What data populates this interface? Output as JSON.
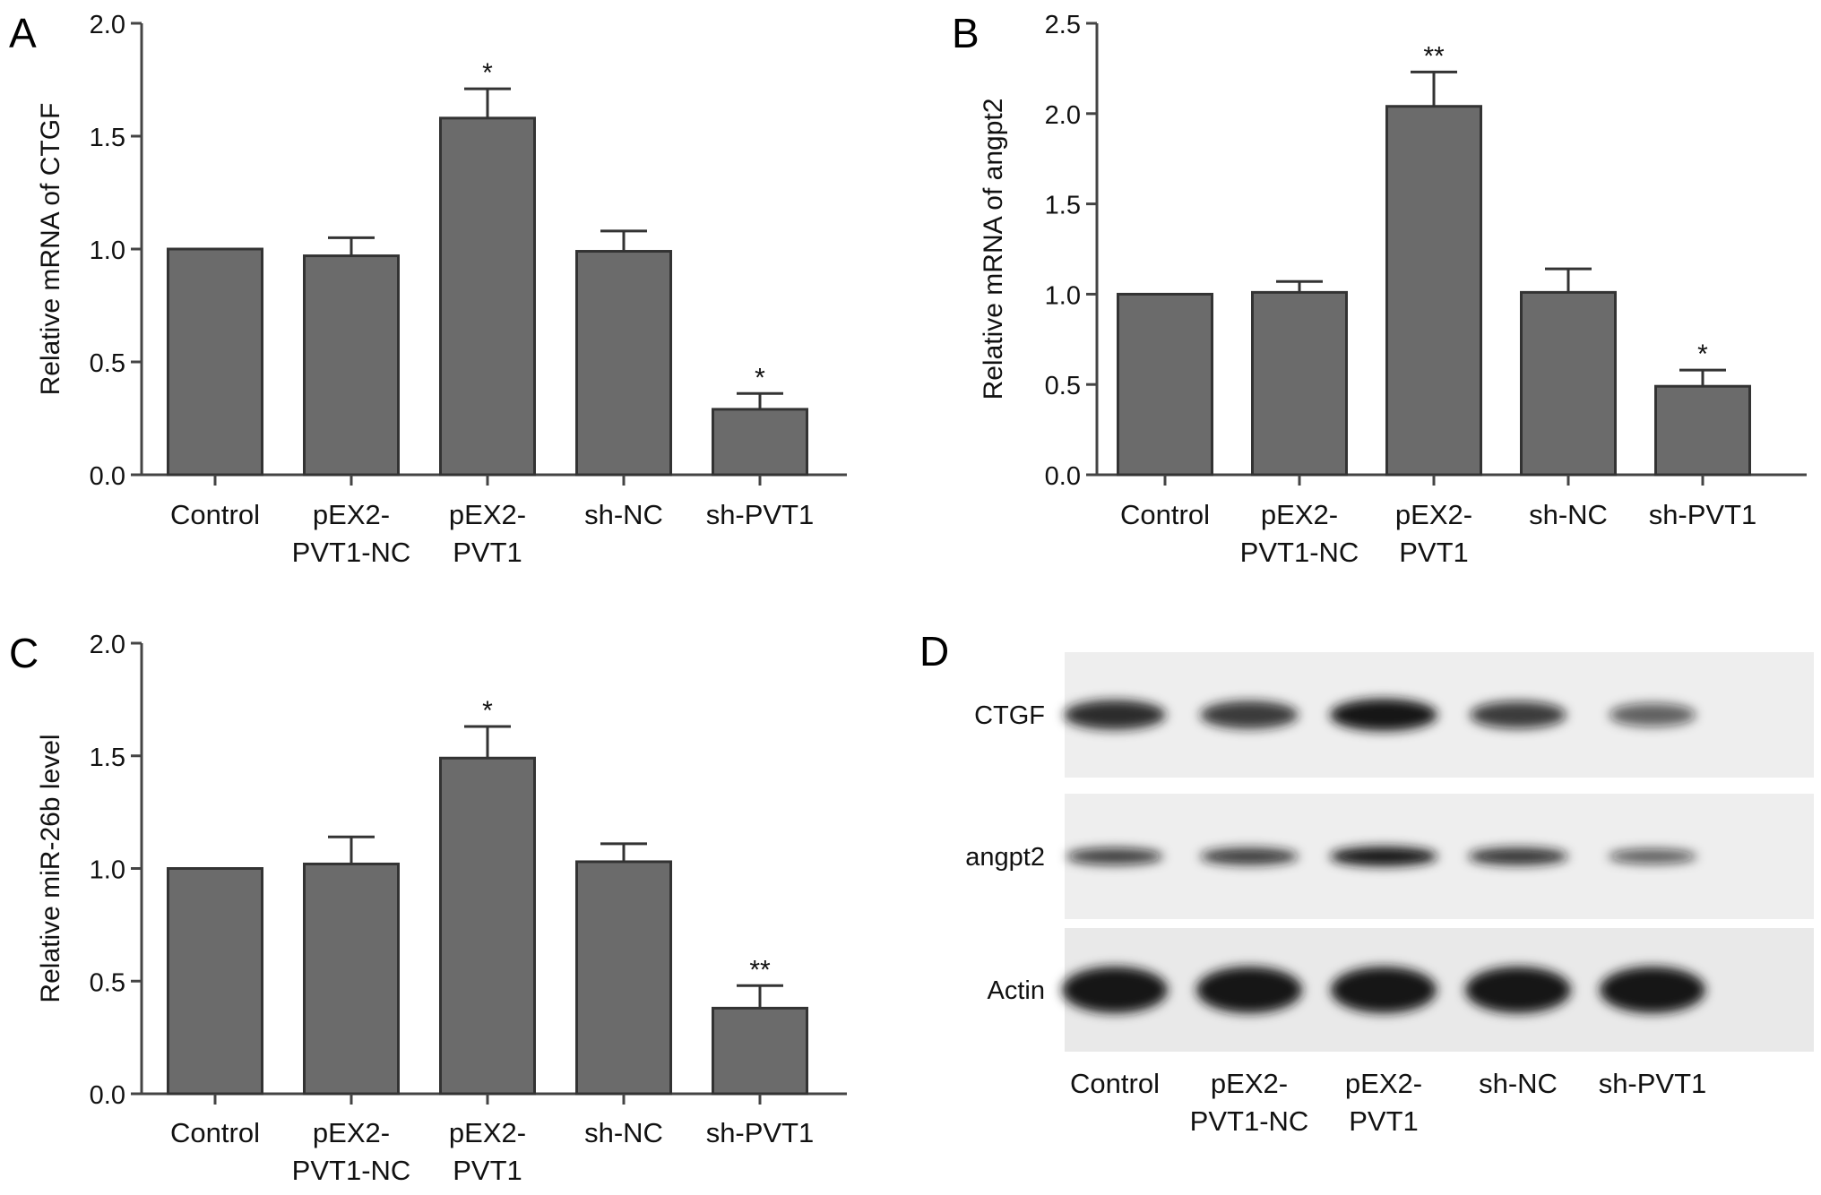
{
  "chart_data": [
    {
      "panel": "A",
      "type": "bar",
      "categories": [
        "Control",
        "pEX2-PVT1-NC",
        "pEX2-PVT1",
        "sh-NC",
        "sh-PVT1"
      ],
      "category_lines": [
        [
          "Control"
        ],
        [
          "pEX2-",
          "PVT1-NC"
        ],
        [
          "pEX2-",
          "PVT1"
        ],
        [
          "sh-NC"
        ],
        [
          "sh-PVT1"
        ]
      ],
      "values": [
        1.0,
        0.97,
        1.58,
        0.99,
        0.29
      ],
      "errors": [
        0.0,
        0.08,
        0.13,
        0.09,
        0.07
      ],
      "significance": [
        "",
        "",
        "*",
        "",
        "*"
      ],
      "ylabel": "Relative mRNA of CTGF",
      "ylim": [
        0,
        2.0
      ],
      "yticks": [
        "0.0",
        "0.5",
        "1.0",
        "1.5",
        "2.0"
      ],
      "grid": false
    },
    {
      "panel": "B",
      "type": "bar",
      "categories": [
        "Control",
        "pEX2-PVT1-NC",
        "pEX2-PVT1",
        "sh-NC",
        "sh-PVT1"
      ],
      "category_lines": [
        [
          "Control"
        ],
        [
          "pEX2-",
          "PVT1-NC"
        ],
        [
          "pEX2-",
          "PVT1"
        ],
        [
          "sh-NC"
        ],
        [
          "sh-PVT1"
        ]
      ],
      "values": [
        1.0,
        1.01,
        2.04,
        1.01,
        0.49
      ],
      "errors": [
        0.0,
        0.06,
        0.19,
        0.13,
        0.09
      ],
      "significance": [
        "",
        "",
        "**",
        "",
        "*"
      ],
      "ylabel": "Relative mRNA of angpt2",
      "ylim": [
        0,
        2.5
      ],
      "yticks": [
        "0.0",
        "0.5",
        "1.0",
        "1.5",
        "2.0",
        "2.5"
      ],
      "grid": false
    },
    {
      "panel": "C",
      "type": "bar",
      "categories": [
        "Control",
        "pEX2-PVT1-NC",
        "pEX2-PVT1",
        "sh-NC",
        "sh-PVT1"
      ],
      "category_lines": [
        [
          "Control"
        ],
        [
          "pEX2-",
          "PVT1-NC"
        ],
        [
          "pEX2-",
          "PVT1"
        ],
        [
          "sh-NC"
        ],
        [
          "sh-PVT1"
        ]
      ],
      "values": [
        1.0,
        1.02,
        1.49,
        1.03,
        0.38
      ],
      "errors": [
        0.0,
        0.12,
        0.14,
        0.08,
        0.1
      ],
      "significance": [
        "",
        "",
        "*",
        "",
        "**"
      ],
      "ylabel": "Relative miR-26b level",
      "ylim": [
        0,
        2.0
      ],
      "yticks": [
        "0.0",
        "0.5",
        "1.0",
        "1.5",
        "2.0"
      ],
      "grid": false
    }
  ],
  "panels": {
    "a": {
      "letter": "A"
    },
    "b": {
      "letter": "B"
    },
    "c": {
      "letter": "C"
    },
    "d": {
      "letter": "D"
    }
  },
  "blot": {
    "rows": [
      "CTGF",
      "angpt2",
      "Actin"
    ],
    "lanes": [
      [
        "Control"
      ],
      [
        "pEX2-",
        "PVT1-NC"
      ],
      [
        "pEX2-",
        "PVT1"
      ],
      [
        "sh-NC"
      ],
      [
        "sh-PVT1"
      ]
    ],
    "band_intensity": [
      [
        0.85,
        0.75,
        1.0,
        0.7,
        0.45
      ],
      [
        0.7,
        0.75,
        1.0,
        0.8,
        0.5
      ],
      [
        1.0,
        1.0,
        1.0,
        1.0,
        1.0
      ]
    ],
    "colors": {
      "bar_fill": "#6b6b6b",
      "bar_edge": "#333333",
      "band": "#141414"
    }
  }
}
